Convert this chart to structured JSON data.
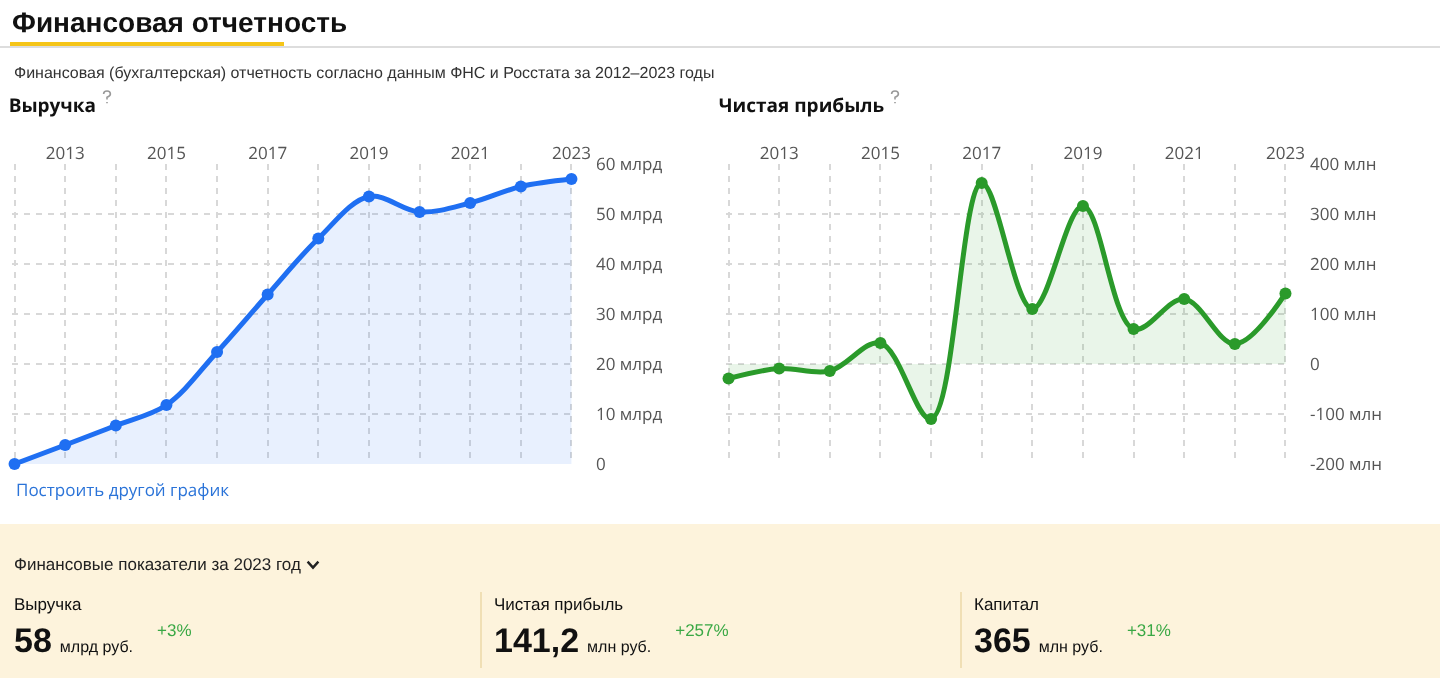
{
  "chart_data": [
    {
      "type": "other",
      "title": "Финансовая отчетность",
      "subtitle": "Финансовая (бухгалтерская) отчетность согласно данным ФНС и Росстата за 2012–2023 годы"
    },
    {
      "type": "area",
      "title": "Выручка",
      "x": [
        2012,
        2013,
        2014,
        2015,
        2016,
        2017,
        2018,
        2019,
        2020,
        2021,
        2022,
        2023
      ],
      "values": [
        0,
        3.8,
        7.7,
        11.8,
        22.4,
        33.9,
        45.1,
        53.5,
        50.4,
        52.2,
        55.5,
        57
      ],
      "color": "#1f6ff2",
      "xlim": [
        2011.95,
        2023.05
      ],
      "xticks": [
        {
          "value": 2012,
          "label": null
        },
        2013,
        {
          "value": 2014,
          "label": null
        },
        2015,
        {
          "value": 2016,
          "label": null
        },
        2017,
        {
          "value": 2018,
          "label": null
        },
        2019,
        {
          "value": 2020,
          "label": null
        },
        2021,
        {
          "value": 2022,
          "label": null
        },
        2023
      ],
      "ylim": [
        0,
        60
      ],
      "yticks": [
        0,
        {
          "value": 10,
          "label": "10 млрд"
        },
        {
          "value": 20,
          "label": "20 млрд"
        },
        {
          "value": 30,
          "label": "30 млрд"
        },
        {
          "value": 40,
          "label": "40 млрд"
        },
        {
          "value": 50,
          "label": "50 млрд"
        },
        {
          "value": 60,
          "label": "60 млрд"
        }
      ],
      "grid": true,
      "marker": "circle",
      "line_style": "solid",
      "annotations": [
        "Построить другой график"
      ]
    },
    {
      "type": "area",
      "title": "Чистая прибыль",
      "x": [
        2012,
        2013,
        2014,
        2015,
        2016,
        2017,
        2018,
        2019,
        2020,
        2021,
        2022,
        2023
      ],
      "values": [
        -29,
        -9,
        -14,
        42,
        -110,
        362,
        110,
        316,
        70,
        130,
        40,
        141
      ],
      "color": "#2a9a2a",
      "xlim": [
        2011.95,
        2023.05
      ],
      "xticks": [
        {
          "value": 2012,
          "label": null
        },
        2013,
        {
          "value": 2014,
          "label": null
        },
        2015,
        {
          "value": 2016,
          "label": null
        },
        2017,
        {
          "value": 2018,
          "label": null
        },
        2019,
        {
          "value": 2020,
          "label": null
        },
        2021,
        {
          "value": 2022,
          "label": null
        },
        2023
      ],
      "ylim": [
        -200,
        400
      ],
      "yticks": [
        {
          "value": -200,
          "label": "-200 млн"
        },
        {
          "value": -100,
          "label": "-100 млн"
        },
        0,
        {
          "value": 100,
          "label": "100 млн"
        },
        {
          "value": 200,
          "label": "200 млн"
        },
        {
          "value": 300,
          "label": "300 млн"
        },
        {
          "value": 400,
          "label": "400 млн"
        }
      ],
      "grid": true,
      "marker": "circle",
      "line_style": "solid"
    },
    {
      "type": "other",
      "title": "Финансовые показатели за 2023 год",
      "annotations": [
        "Выручка",
        "58",
        "млрд руб.",
        "+3%",
        "Чистая прибыль",
        "141,2",
        "млн руб.",
        "+257%",
        "Капитал",
        "365",
        "млн руб.",
        "+31%"
      ]
    }
  ]
}
